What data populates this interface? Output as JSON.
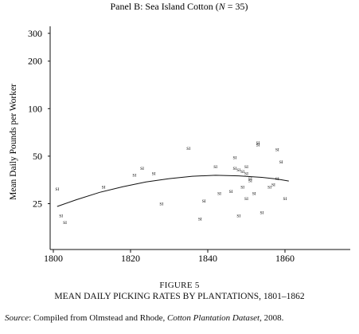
{
  "chart_data": {
    "type": "scatter",
    "panel_title_prefix": "Panel B: Sea Island Cotton (",
    "panel_title_n_symbol": "N",
    "panel_title_n_value": " = 35)",
    "ylabel": "Mean Daily Pounds per Worker",
    "y_scale": "log",
    "ylim": [
      15,
      300
    ],
    "xlim": [
      1800,
      1862
    ],
    "x_ticks": [
      1800,
      1820,
      1840,
      1860
    ],
    "y_ticks": [
      25,
      50,
      100,
      200,
      300
    ],
    "marker_label": "SI",
    "points": [
      {
        "x": 1801,
        "y": 31
      },
      {
        "x": 1802,
        "y": 21
      },
      {
        "x": 1803,
        "y": 19
      },
      {
        "x": 1813,
        "y": 32
      },
      {
        "x": 1821,
        "y": 38
      },
      {
        "x": 1823,
        "y": 42
      },
      {
        "x": 1826,
        "y": 39
      },
      {
        "x": 1828,
        "y": 25
      },
      {
        "x": 1835,
        "y": 56
      },
      {
        "x": 1838,
        "y": 20
      },
      {
        "x": 1839,
        "y": 26
      },
      {
        "x": 1842,
        "y": 43
      },
      {
        "x": 1843,
        "y": 29
      },
      {
        "x": 1846,
        "y": 30
      },
      {
        "x": 1847,
        "y": 49
      },
      {
        "x": 1847,
        "y": 42
      },
      {
        "x": 1848,
        "y": 41
      },
      {
        "x": 1848,
        "y": 21
      },
      {
        "x": 1849,
        "y": 40
      },
      {
        "x": 1849,
        "y": 32
      },
      {
        "x": 1850,
        "y": 43
      },
      {
        "x": 1850,
        "y": 39
      },
      {
        "x": 1850,
        "y": 27
      },
      {
        "x": 1851,
        "y": 36
      },
      {
        "x": 1851,
        "y": 35
      },
      {
        "x": 1852,
        "y": 29
      },
      {
        "x": 1853,
        "y": 61
      },
      {
        "x": 1853,
        "y": 59
      },
      {
        "x": 1854,
        "y": 22
      },
      {
        "x": 1856,
        "y": 32
      },
      {
        "x": 1857,
        "y": 33
      },
      {
        "x": 1858,
        "y": 55
      },
      {
        "x": 1858,
        "y": 36
      },
      {
        "x": 1859,
        "y": 46
      },
      {
        "x": 1860,
        "y": 27
      }
    ],
    "smooth_line": [
      {
        "x": 1801,
        "y": 24
      },
      {
        "x": 1806,
        "y": 26.5
      },
      {
        "x": 1812,
        "y": 29.5
      },
      {
        "x": 1818,
        "y": 32
      },
      {
        "x": 1824,
        "y": 34.3
      },
      {
        "x": 1830,
        "y": 36
      },
      {
        "x": 1836,
        "y": 37.3
      },
      {
        "x": 1842,
        "y": 37.8
      },
      {
        "x": 1848,
        "y": 37.5
      },
      {
        "x": 1854,
        "y": 36.7
      },
      {
        "x": 1858,
        "y": 35.8
      },
      {
        "x": 1861,
        "y": 34.8
      }
    ]
  },
  "figure": {
    "label": "FIGURE 5",
    "title": "MEAN DAILY PICKING RATES BY PLANTATIONS, 1801–1862",
    "source_label": "Source",
    "source_text": ": Compiled from Olmstead and Rhode, ",
    "source_title": "Cotton Plantation Dataset",
    "source_end": ", 2008."
  }
}
